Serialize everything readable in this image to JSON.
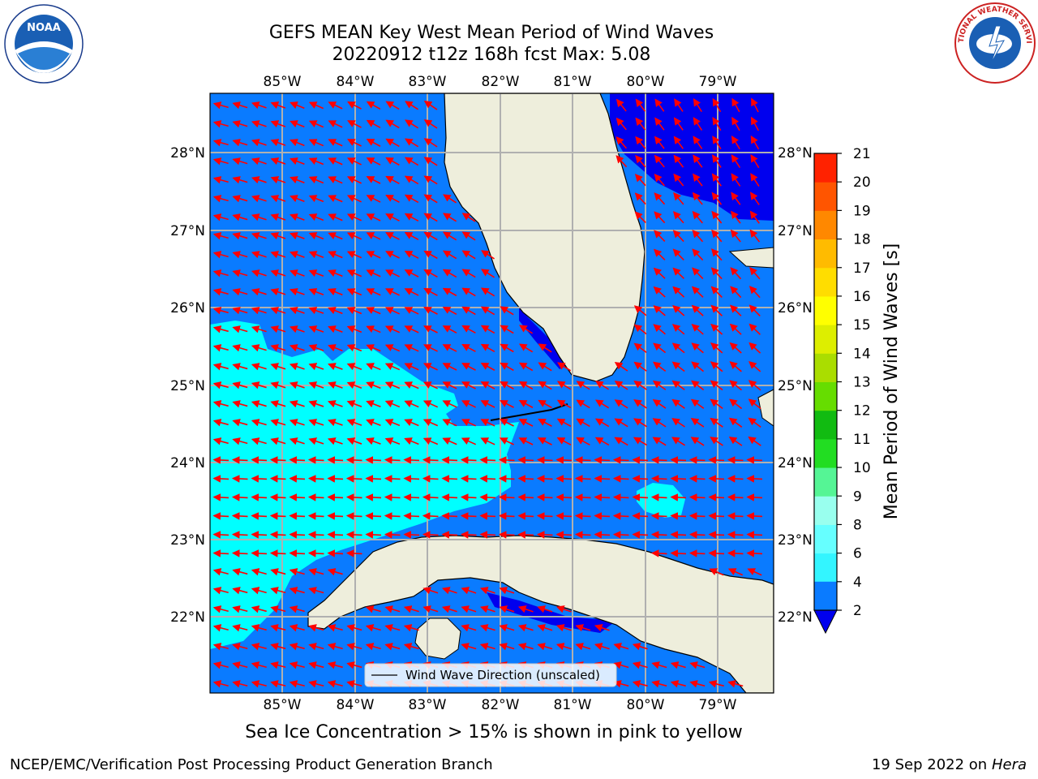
{
  "title_line1": "GEFS MEAN Key West Mean Period of Wind Waves",
  "title_line2": "20220912 t12z 168h fcst   Max: 5.08",
  "map": {
    "lon_labels": [
      "85°W",
      "84°W",
      "83°W",
      "82°W",
      "81°W",
      "80°W",
      "79°W"
    ],
    "lat_labels": [
      "28°N",
      "27°N",
      "26°N",
      "25°N",
      "24°N",
      "23°N",
      "22°N"
    ],
    "legend_label": "Wind Wave Direction (unscaled)"
  },
  "colorbar": {
    "label": "Mean Period of Wind Waves [s]",
    "ticks": [
      "2",
      "4",
      "6",
      "8",
      "9",
      "10",
      "11",
      "12",
      "13",
      "14",
      "15",
      "16",
      "17",
      "18",
      "19",
      "20",
      "21"
    ],
    "colors": [
      "#0a7bff",
      "#00e5ff",
      "#33f5ff",
      "#66ffff",
      "#99ffee",
      "#55f595",
      "#22dd22",
      "#11bb11",
      "#66dd00",
      "#aadd00",
      "#ddee00",
      "#ffff00",
      "#ffdd00",
      "#ffbb00",
      "#ff8800",
      "#ff5500",
      "#ff2200",
      "#ff0000"
    ]
  },
  "colors": {
    "ocean_blue": "#0a7bff",
    "deep_blue": "#0000ee",
    "cyan": "#00ffff",
    "land": "#eeeedc",
    "arrow": "#ff0000"
  },
  "sea_ice_note": "Sea Ice Concentration > 15% is shown in pink to yellow",
  "footer_left": "NCEP/EMC/Verification Post Processing Product Generation Branch",
  "footer_date": "19 Sep 2022 on",
  "footer_host": "Hera",
  "logos": {
    "noaa": "NOAA",
    "nws": "NATIONAL WEATHER SERVICE"
  }
}
